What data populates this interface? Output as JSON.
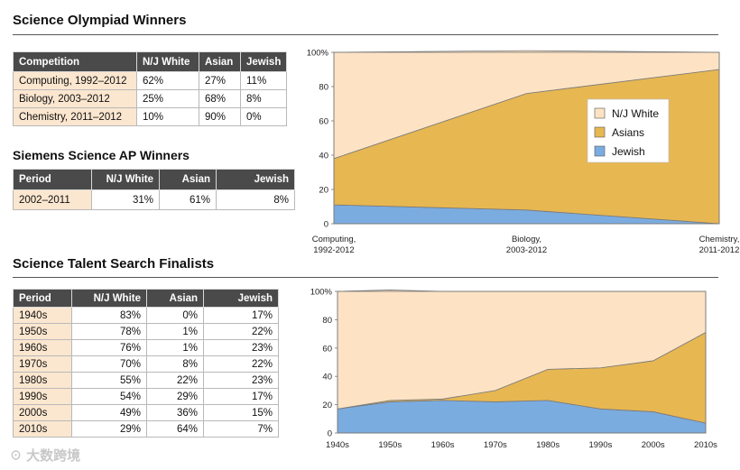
{
  "olympiad": {
    "heading": "Science Olympiad Winners",
    "headers": [
      "Competition",
      "N/J White",
      "Asian",
      "Jewish"
    ],
    "rows": [
      [
        "Computing, 1992–2012",
        "62%",
        "27%",
        "11%"
      ],
      [
        "Biology, 2003–2012",
        "25%",
        "68%",
        "8%"
      ],
      [
        "Chemistry, 2011–2012",
        "10%",
        "90%",
        "0%"
      ]
    ]
  },
  "siemens": {
    "heading": "Siemens Science AP Winners",
    "headers": [
      "Period",
      "N/J White",
      "Asian",
      "Jewish"
    ],
    "rows": [
      [
        "2002–2011",
        "31%",
        "61%",
        "8%"
      ]
    ]
  },
  "sts": {
    "heading": "Science Talent Search Finalists",
    "headers": [
      "Period",
      "N/J White",
      "Asian",
      "Jewish"
    ],
    "rows": [
      [
        "1940s",
        "83%",
        "0%",
        "17%"
      ],
      [
        "1950s",
        "78%",
        "1%",
        "22%"
      ],
      [
        "1960s",
        "76%",
        "1%",
        "23%"
      ],
      [
        "1970s",
        "70%",
        "8%",
        "22%"
      ],
      [
        "1980s",
        "55%",
        "22%",
        "23%"
      ],
      [
        "1990s",
        "54%",
        "29%",
        "17%"
      ],
      [
        "2000s",
        "49%",
        "36%",
        "15%"
      ],
      [
        "2010s",
        "29%",
        "64%",
        "7%"
      ]
    ]
  },
  "watermark": "大数跨境",
  "chart_data": [
    {
      "type": "area",
      "stacked": true,
      "title": "Science Olympiad Winners",
      "categories": [
        "Computing, 1992–2012",
        "Biology, 2003–2012",
        "Chemistry, 2011–2012"
      ],
      "category_lines": [
        [
          "Computing,",
          "1992-2012"
        ],
        [
          "Biology,",
          "2003-2012"
        ],
        [
          "Chemistry,",
          "2011-2012"
        ]
      ],
      "series": [
        {
          "name": "Jewish",
          "values": [
            11,
            8,
            0
          ],
          "color": "#7bace0"
        },
        {
          "name": "Asians",
          "values": [
            27,
            68,
            90
          ],
          "color": "#e7b752"
        },
        {
          "name": "N/J White",
          "values": [
            62,
            25,
            10
          ],
          "color": "#fde3c4"
        }
      ],
      "ylim": [
        0,
        100
      ],
      "yticks": [
        "0",
        "20",
        "40",
        "60",
        "80",
        "100%"
      ],
      "legend": {
        "placement": "right",
        "entries": [
          "N/J White",
          "Asians",
          "Jewish"
        ]
      }
    },
    {
      "type": "area",
      "stacked": true,
      "title": "Science Talent Search Finalists",
      "categories": [
        "1940s",
        "1950s",
        "1960s",
        "1970s",
        "1980s",
        "1990s",
        "2000s",
        "2010s"
      ],
      "series": [
        {
          "name": "Jewish",
          "values": [
            17,
            22,
            23,
            22,
            23,
            17,
            15,
            7
          ],
          "color": "#7bace0"
        },
        {
          "name": "Asians",
          "values": [
            0,
            1,
            1,
            8,
            22,
            29,
            36,
            64
          ],
          "color": "#e7b752"
        },
        {
          "name": "N/J White",
          "values": [
            83,
            78,
            76,
            70,
            55,
            54,
            49,
            29
          ],
          "color": "#fde3c4"
        }
      ],
      "ylim": [
        0,
        100
      ],
      "yticks": [
        "0",
        "20",
        "40",
        "60",
        "80",
        "100%"
      ]
    }
  ]
}
